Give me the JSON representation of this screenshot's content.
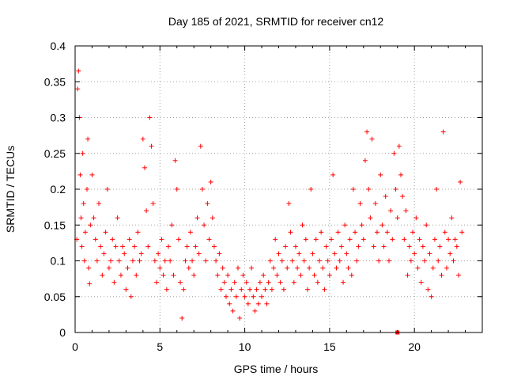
{
  "chart_data": {
    "type": "scatter",
    "title": "Day 185 of 2021, SRMTID for receiver cn12",
    "xlabel": "GPS time / hours",
    "ylabel": "SRMTID / TECUs",
    "xlim": [
      0,
      24
    ],
    "ylim": [
      0,
      0.4
    ],
    "grid": true,
    "legend": "none",
    "marker_color": "#ff0000",
    "x_ticks": [
      {
        "value": 0,
        "label": "0"
      },
      {
        "value": 5,
        "label": "5"
      },
      {
        "value": 10,
        "label": "10"
      },
      {
        "value": 15,
        "label": "15"
      },
      {
        "value": 20,
        "label": "20"
      }
    ],
    "y_ticks": [
      {
        "value": 0,
        "label": "0"
      },
      {
        "value": 0.05,
        "label": "0.05"
      },
      {
        "value": 0.1,
        "label": "0.1"
      },
      {
        "value": 0.15,
        "label": "0.15"
      },
      {
        "value": 0.2,
        "label": "0.2"
      },
      {
        "value": 0.25,
        "label": "0.25"
      },
      {
        "value": 0.3,
        "label": "0.3"
      },
      {
        "value": 0.35,
        "label": "0.35"
      },
      {
        "value": 0.4,
        "label": "0.4"
      }
    ],
    "series": [
      {
        "name": "SRMTID",
        "marker": "+",
        "points": [
          [
            0.1,
            0.13
          ],
          [
            0.15,
            0.34
          ],
          [
            0.2,
            0.365
          ],
          [
            0.25,
            0.3
          ],
          [
            0.3,
            0.22
          ],
          [
            0.35,
            0.16
          ],
          [
            0.4,
            0.12
          ],
          [
            0.45,
            0.25
          ],
          [
            0.5,
            0.18
          ],
          [
            0.55,
            0.1
          ],
          [
            0.6,
            0.14
          ],
          [
            0.7,
            0.2
          ],
          [
            0.75,
            0.27
          ],
          [
            0.8,
            0.09
          ],
          [
            0.85,
            0.068
          ],
          [
            0.9,
            0.15
          ],
          [
            1.0,
            0.22
          ],
          [
            1.1,
            0.16
          ],
          [
            1.2,
            0.13
          ],
          [
            1.3,
            0.1
          ],
          [
            1.4,
            0.18
          ],
          [
            1.5,
            0.12
          ],
          [
            1.6,
            0.08
          ],
          [
            1.7,
            0.11
          ],
          [
            1.8,
            0.14
          ],
          [
            1.9,
            0.2
          ],
          [
            2.0,
            0.09
          ],
          [
            2.1,
            0.1
          ],
          [
            2.2,
            0.13
          ],
          [
            2.3,
            0.07
          ],
          [
            2.4,
            0.12
          ],
          [
            2.5,
            0.16
          ],
          [
            2.6,
            0.1
          ],
          [
            2.7,
            0.08
          ],
          [
            2.8,
            0.12
          ],
          [
            2.9,
            0.11
          ],
          [
            3.0,
            0.06
          ],
          [
            3.1,
            0.09
          ],
          [
            3.2,
            0.13
          ],
          [
            3.3,
            0.05
          ],
          [
            3.4,
            0.1
          ],
          [
            3.5,
            0.12
          ],
          [
            3.6,
            0.08
          ],
          [
            3.7,
            0.14
          ],
          [
            3.8,
            0.1
          ],
          [
            3.9,
            0.11
          ],
          [
            4.0,
            0.27
          ],
          [
            4.1,
            0.23
          ],
          [
            4.2,
            0.17
          ],
          [
            4.3,
            0.12
          ],
          [
            4.4,
            0.3
          ],
          [
            4.5,
            0.26
          ],
          [
            4.6,
            0.18
          ],
          [
            4.7,
            0.1
          ],
          [
            4.8,
            0.07
          ],
          [
            4.9,
            0.11
          ],
          [
            5.0,
            0.09
          ],
          [
            5.1,
            0.13
          ],
          [
            5.2,
            0.08
          ],
          [
            5.3,
            0.1
          ],
          [
            5.4,
            0.06
          ],
          [
            5.5,
            0.12
          ],
          [
            5.6,
            0.1
          ],
          [
            5.7,
            0.15
          ],
          [
            5.8,
            0.08
          ],
          [
            5.9,
            0.24
          ],
          [
            6.0,
            0.2
          ],
          [
            6.1,
            0.13
          ],
          [
            6.2,
            0.07
          ],
          [
            6.3,
            0.02
          ],
          [
            6.4,
            0.06
          ],
          [
            6.5,
            0.1
          ],
          [
            6.6,
            0.12
          ],
          [
            6.7,
            0.09
          ],
          [
            6.8,
            0.14
          ],
          [
            6.9,
            0.1
          ],
          [
            7.0,
            0.08
          ],
          [
            7.1,
            0.12
          ],
          [
            7.2,
            0.16
          ],
          [
            7.3,
            0.11
          ],
          [
            7.4,
            0.26
          ],
          [
            7.5,
            0.2
          ],
          [
            7.6,
            0.15
          ],
          [
            7.7,
            0.1
          ],
          [
            7.8,
            0.18
          ],
          [
            7.9,
            0.13
          ],
          [
            8.0,
            0.21
          ],
          [
            8.1,
            0.16
          ],
          [
            8.2,
            0.12
          ],
          [
            8.3,
            0.1
          ],
          [
            8.4,
            0.08
          ],
          [
            8.5,
            0.11
          ],
          [
            8.6,
            0.06
          ],
          [
            8.7,
            0.09
          ],
          [
            8.8,
            0.07
          ],
          [
            8.9,
            0.05
          ],
          [
            9.0,
            0.08
          ],
          [
            9.1,
            0.04
          ],
          [
            9.2,
            0.06
          ],
          [
            9.3,
            0.03
          ],
          [
            9.4,
            0.07
          ],
          [
            9.5,
            0.05
          ],
          [
            9.6,
            0.09
          ],
          [
            9.7,
            0.02
          ],
          [
            9.8,
            0.06
          ],
          [
            9.9,
            0.08
          ],
          [
            10.0,
            0.05
          ],
          [
            10.1,
            0.07
          ],
          [
            10.2,
            0.04
          ],
          [
            10.3,
            0.06
          ],
          [
            10.4,
            0.09
          ],
          [
            10.5,
            0.05
          ],
          [
            10.6,
            0.03
          ],
          [
            10.7,
            0.06
          ],
          [
            10.8,
            0.04
          ],
          [
            10.9,
            0.07
          ],
          [
            11.0,
            0.05
          ],
          [
            11.1,
            0.08
          ],
          [
            11.2,
            0.06
          ],
          [
            11.3,
            0.04
          ],
          [
            11.4,
            0.07
          ],
          [
            11.5,
            0.1
          ],
          [
            11.6,
            0.06
          ],
          [
            11.7,
            0.09
          ],
          [
            11.8,
            0.13
          ],
          [
            11.9,
            0.08
          ],
          [
            12.0,
            0.11
          ],
          [
            12.1,
            0.07
          ],
          [
            12.2,
            0.1
          ],
          [
            12.3,
            0.06
          ],
          [
            12.4,
            0.12
          ],
          [
            12.5,
            0.09
          ],
          [
            12.6,
            0.18
          ],
          [
            12.7,
            0.14
          ],
          [
            12.8,
            0.1
          ],
          [
            12.9,
            0.07
          ],
          [
            13.0,
            0.12
          ],
          [
            13.1,
            0.09
          ],
          [
            13.2,
            0.11
          ],
          [
            13.3,
            0.08
          ],
          [
            13.4,
            0.15
          ],
          [
            13.5,
            0.1
          ],
          [
            13.6,
            0.13
          ],
          [
            13.7,
            0.06
          ],
          [
            13.8,
            0.09
          ],
          [
            13.9,
            0.2
          ],
          [
            14.0,
            0.11
          ],
          [
            14.1,
            0.08
          ],
          [
            14.2,
            0.13
          ],
          [
            14.3,
            0.07
          ],
          [
            14.4,
            0.1
          ],
          [
            14.5,
            0.14
          ],
          [
            14.6,
            0.09
          ],
          [
            14.7,
            0.06
          ],
          [
            14.8,
            0.12
          ],
          [
            14.9,
            0.1
          ],
          [
            15.0,
            0.08
          ],
          [
            15.1,
            0.13
          ],
          [
            15.2,
            0.22
          ],
          [
            15.3,
            0.11
          ],
          [
            15.4,
            0.09
          ],
          [
            15.5,
            0.14
          ],
          [
            15.6,
            0.1
          ],
          [
            15.7,
            0.12
          ],
          [
            15.8,
            0.07
          ],
          [
            15.9,
            0.15
          ],
          [
            16.0,
            0.11
          ],
          [
            16.1,
            0.09
          ],
          [
            16.2,
            0.13
          ],
          [
            16.3,
            0.08
          ],
          [
            16.4,
            0.2
          ],
          [
            16.5,
            0.14
          ],
          [
            16.6,
            0.1
          ],
          [
            16.7,
            0.12
          ],
          [
            16.8,
            0.18
          ],
          [
            16.9,
            0.15
          ],
          [
            17.0,
            0.13
          ],
          [
            17.1,
            0.24
          ],
          [
            17.2,
            0.28
          ],
          [
            17.3,
            0.2
          ],
          [
            17.4,
            0.16
          ],
          [
            17.5,
            0.27
          ],
          [
            17.6,
            0.12
          ],
          [
            17.7,
            0.18
          ],
          [
            17.8,
            0.14
          ],
          [
            17.9,
            0.1
          ],
          [
            18.0,
            0.22
          ],
          [
            18.1,
            0.15
          ],
          [
            18.2,
            0.12
          ],
          [
            18.3,
            0.19
          ],
          [
            18.4,
            0.14
          ],
          [
            18.5,
            0.1
          ],
          [
            18.6,
            0.17
          ],
          [
            18.7,
            0.13
          ],
          [
            18.8,
            0.25
          ],
          [
            18.9,
            0.2
          ],
          [
            19.0,
            0.16
          ],
          [
            19.1,
            0.26
          ],
          [
            19.2,
            0.22
          ],
          [
            19.3,
            0.19
          ],
          [
            19.4,
            0.13
          ],
          [
            19.5,
            0.17
          ],
          [
            19.6,
            0.08
          ],
          [
            19.7,
            0.12
          ],
          [
            19.8,
            0.1
          ],
          [
            19.9,
            0.14
          ],
          [
            20.0,
            0.11
          ],
          [
            20.1,
            0.16
          ],
          [
            20.2,
            0.09
          ],
          [
            20.3,
            0.13
          ],
          [
            20.4,
            0.07
          ],
          [
            20.5,
            0.12
          ],
          [
            20.6,
            0.1
          ],
          [
            20.7,
            0.15
          ],
          [
            20.8,
            0.06
          ],
          [
            20.9,
            0.11
          ],
          [
            21.0,
            0.05
          ],
          [
            21.1,
            0.09
          ],
          [
            21.2,
            0.13
          ],
          [
            21.3,
            0.2
          ],
          [
            21.4,
            0.1
          ],
          [
            21.5,
            0.12
          ],
          [
            21.6,
            0.08
          ],
          [
            21.7,
            0.28
          ],
          [
            21.8,
            0.14
          ],
          [
            21.9,
            0.09
          ],
          [
            22.0,
            0.13
          ],
          [
            22.1,
            0.11
          ],
          [
            22.2,
            0.16
          ],
          [
            22.3,
            0.1
          ],
          [
            22.4,
            0.13
          ],
          [
            22.5,
            0.12
          ],
          [
            22.6,
            0.08
          ],
          [
            22.7,
            0.21
          ],
          [
            22.8,
            0.14
          ]
        ]
      }
    ],
    "extra_marks": [
      {
        "name": "square-marker",
        "x": 19.0,
        "y": 0.0
      }
    ]
  }
}
